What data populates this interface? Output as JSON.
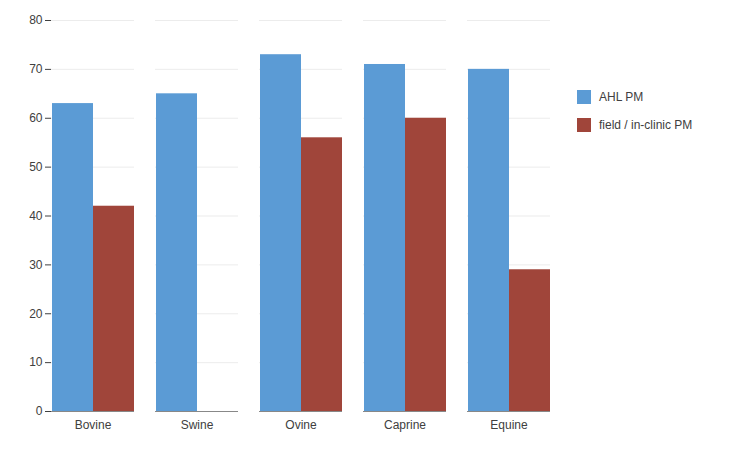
{
  "chart_data": {
    "type": "bar",
    "categories": [
      "Bovine",
      "Swine",
      "Ovine",
      "Caprine",
      "Equine"
    ],
    "series": [
      {
        "name": "AHL PM",
        "color": "#5B9BD5",
        "values": [
          63,
          65,
          73,
          71,
          70
        ]
      },
      {
        "name": "field / in-clinic PM",
        "color": "#A0453A",
        "values": [
          42,
          0,
          56,
          60,
          29
        ]
      }
    ],
    "ylim": [
      0,
      80
    ],
    "yticks": [
      0,
      10,
      20,
      30,
      40,
      50,
      60,
      70,
      80
    ],
    "grid": true,
    "legend": "right"
  }
}
